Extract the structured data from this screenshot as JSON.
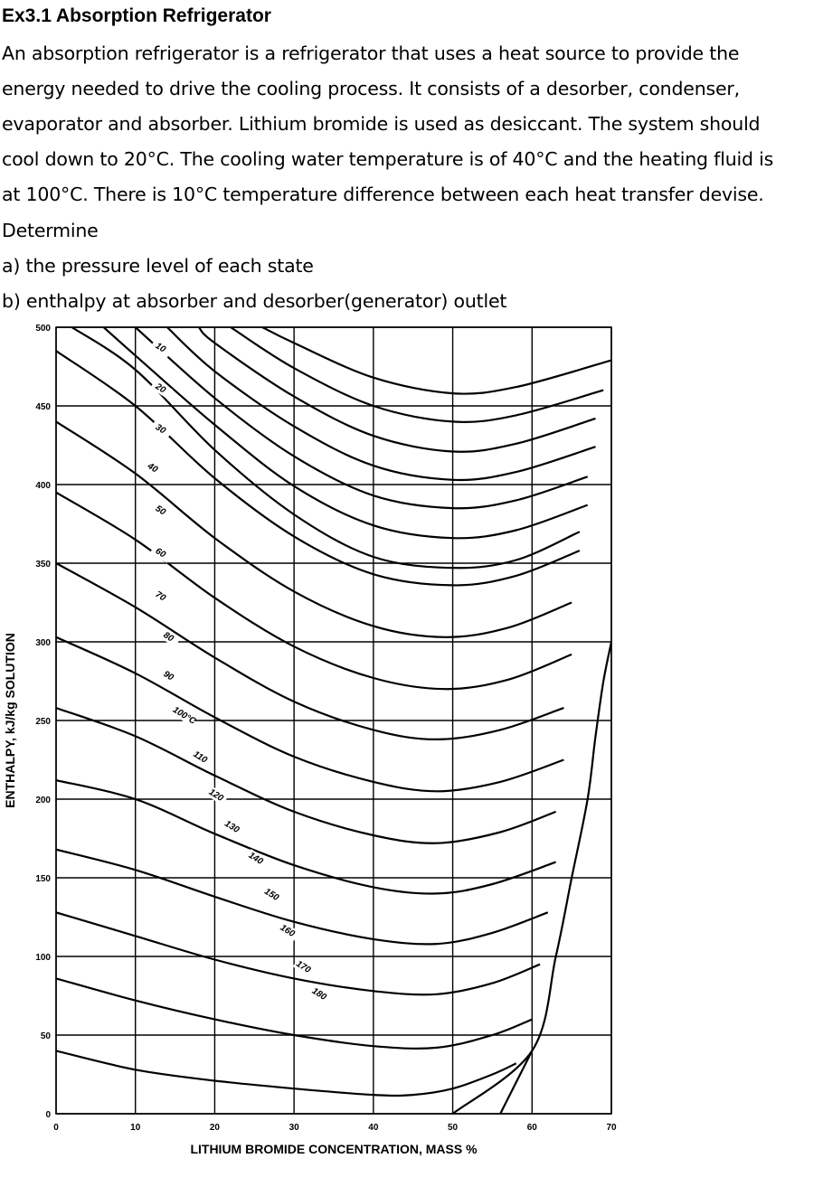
{
  "problem": {
    "title": "Ex3.1 Absorption Refrigerator",
    "lines": [
      "An absorption refrigerator is a refrigerator that uses a heat source to provide the",
      "energy needed to drive the cooling process. It consists of a desorber, condenser,",
      "evaporator and absorber. Lithium bromide is used as desiccant. The system should",
      "cool down to 20°C. The cooling water temperature is of 40°C and the heating fluid is",
      "at 100°C. There is 10°C temperature difference between each heat transfer devise.",
      "Determine",
      "a) the pressure level of each state",
      "b) enthalpy at absorber and desorber(generator) outlet"
    ]
  },
  "chart_data": {
    "type": "line",
    "xlabel": "LITHIUM BROMIDE CONCENTRATION, MASS %",
    "ylabel": "ENTHALPY, kJ/kg SOLUTION",
    "xlim": [
      0,
      70
    ],
    "ylim": [
      0,
      500
    ],
    "xticks": [
      0,
      10,
      20,
      30,
      40,
      50,
      60,
      70
    ],
    "yticks": [
      0,
      50,
      100,
      150,
      200,
      250,
      300,
      350,
      400,
      450,
      500
    ],
    "grid": true,
    "series": [
      {
        "name": "10",
        "label_at": [
          13,
          25
        ],
        "points": [
          [
            0,
            40
          ],
          [
            10,
            28
          ],
          [
            20,
            21
          ],
          [
            30,
            16
          ],
          [
            40,
            12
          ],
          [
            45,
            12
          ],
          [
            50,
            16
          ],
          [
            55,
            25
          ],
          [
            58,
            32
          ]
        ]
      },
      {
        "name": "20",
        "label_at": [
          13,
          70
        ],
        "points": [
          [
            0,
            86
          ],
          [
            10,
            72
          ],
          [
            20,
            60
          ],
          [
            30,
            50
          ],
          [
            40,
            43
          ],
          [
            48,
            42
          ],
          [
            55,
            50
          ],
          [
            60,
            60
          ]
        ]
      },
      {
        "name": "30",
        "label_at": [
          13,
          115
        ],
        "points": [
          [
            0,
            128
          ],
          [
            10,
            113
          ],
          [
            20,
            98
          ],
          [
            30,
            86
          ],
          [
            40,
            78
          ],
          [
            48,
            76
          ],
          [
            55,
            83
          ],
          [
            61,
            95
          ]
        ]
      },
      {
        "name": "40",
        "label_at": [
          12,
          158
        ],
        "points": [
          [
            0,
            168
          ],
          [
            10,
            155
          ],
          [
            20,
            138
          ],
          [
            30,
            122
          ],
          [
            40,
            111
          ],
          [
            48,
            108
          ],
          [
            55,
            115
          ],
          [
            62,
            128
          ]
        ]
      },
      {
        "name": "50",
        "label_at": [
          13,
          205
        ],
        "points": [
          [
            0,
            212
          ],
          [
            10,
            200
          ],
          [
            20,
            178
          ],
          [
            30,
            158
          ],
          [
            40,
            144
          ],
          [
            48,
            140
          ],
          [
            55,
            146
          ],
          [
            63,
            160
          ]
        ]
      },
      {
        "name": "60",
        "label_at": [
          13,
          252
        ],
        "points": [
          [
            0,
            258
          ],
          [
            10,
            240
          ],
          [
            20,
            215
          ],
          [
            30,
            192
          ],
          [
            40,
            177
          ],
          [
            48,
            172
          ],
          [
            56,
            179
          ],
          [
            63,
            192
          ]
        ]
      },
      {
        "name": "70",
        "label_at": [
          13,
          300
        ],
        "points": [
          [
            0,
            303
          ],
          [
            10,
            280
          ],
          [
            20,
            252
          ],
          [
            30,
            227
          ],
          [
            40,
            211
          ],
          [
            48,
            205
          ],
          [
            56,
            211
          ],
          [
            64,
            225
          ]
        ]
      },
      {
        "name": "80",
        "label_at": [
          14,
          345
        ],
        "points": [
          [
            0,
            350
          ],
          [
            10,
            322
          ],
          [
            20,
            290
          ],
          [
            30,
            262
          ],
          [
            40,
            244
          ],
          [
            48,
            238
          ],
          [
            56,
            244
          ],
          [
            64,
            258
          ]
        ]
      },
      {
        "name": "90",
        "label_at": [
          14,
          388
        ],
        "points": [
          [
            0,
            395
          ],
          [
            10,
            365
          ],
          [
            20,
            328
          ],
          [
            30,
            297
          ],
          [
            40,
            277
          ],
          [
            49,
            270
          ],
          [
            57,
            276
          ],
          [
            65,
            292
          ]
        ]
      },
      {
        "name": "100°C",
        "label_at": [
          16,
          432
        ],
        "points": [
          [
            0,
            440
          ],
          [
            10,
            407
          ],
          [
            20,
            366
          ],
          [
            30,
            332
          ],
          [
            40,
            310
          ],
          [
            49,
            303
          ],
          [
            57,
            309
          ],
          [
            65,
            325
          ]
        ]
      },
      {
        "name": "110",
        "label_at": [
          18,
          478
        ],
        "points": [
          [
            0,
            485
          ],
          [
            10,
            450
          ],
          [
            20,
            404
          ],
          [
            30,
            367
          ],
          [
            40,
            343
          ],
          [
            50,
            336
          ],
          [
            58,
            342
          ],
          [
            66,
            358
          ]
        ]
      },
      {
        "name": "120",
        "label_at": [
          20,
          520
        ],
        "points": [
          [
            2,
            500
          ],
          [
            10,
            473
          ],
          [
            20,
            422
          ],
          [
            30,
            381
          ],
          [
            40,
            354
          ],
          [
            50,
            347
          ],
          [
            58,
            352
          ],
          [
            66,
            370
          ]
        ]
      },
      {
        "name": "130",
        "label_at": [
          22,
          555
        ],
        "points": [
          [
            6,
            500
          ],
          [
            10,
            482
          ],
          [
            20,
            438
          ],
          [
            30,
            399
          ],
          [
            40,
            374
          ],
          [
            50,
            366
          ],
          [
            58,
            371
          ],
          [
            67,
            387
          ]
        ]
      },
      {
        "name": "140",
        "label_at": [
          25,
          590
        ],
        "points": [
          [
            10,
            500
          ],
          [
            20,
            455
          ],
          [
            30,
            418
          ],
          [
            40,
            393
          ],
          [
            50,
            385
          ],
          [
            58,
            390
          ],
          [
            67,
            405
          ]
        ]
      },
      {
        "name": "150",
        "label_at": [
          27,
          630
        ],
        "points": [
          [
            14,
            500
          ],
          [
            20,
            472
          ],
          [
            30,
            437
          ],
          [
            40,
            412
          ],
          [
            50,
            403
          ],
          [
            58,
            408
          ],
          [
            68,
            424
          ]
        ]
      },
      {
        "name": "160",
        "label_at": [
          29,
          670
        ],
        "points": [
          [
            18,
            500
          ],
          [
            20,
            490
          ],
          [
            30,
            456
          ],
          [
            40,
            431
          ],
          [
            50,
            421
          ],
          [
            58,
            426
          ],
          [
            68,
            442
          ]
        ]
      },
      {
        "name": "170",
        "label_at": [
          31,
          710
        ],
        "points": [
          [
            22,
            500
          ],
          [
            30,
            474
          ],
          [
            40,
            450
          ],
          [
            50,
            440
          ],
          [
            58,
            444
          ],
          [
            69,
            460
          ]
        ]
      },
      {
        "name": "180",
        "label_at": [
          33,
          740
        ],
        "points": [
          [
            26,
            500
          ],
          [
            30,
            490
          ],
          [
            40,
            468
          ],
          [
            50,
            458
          ],
          [
            58,
            462
          ],
          [
            70,
            479
          ]
        ]
      }
    ],
    "crystallization_lines": [
      [
        [
          50,
          0
        ],
        [
          60,
          40
        ],
        [
          63,
          100
        ],
        [
          65,
          150
        ],
        [
          67,
          200
        ],
        [
          68,
          240
        ],
        [
          69,
          275
        ],
        [
          70,
          300
        ]
      ],
      [
        [
          56,
          0
        ],
        [
          58,
          20
        ],
        [
          60,
          40
        ]
      ]
    ]
  }
}
